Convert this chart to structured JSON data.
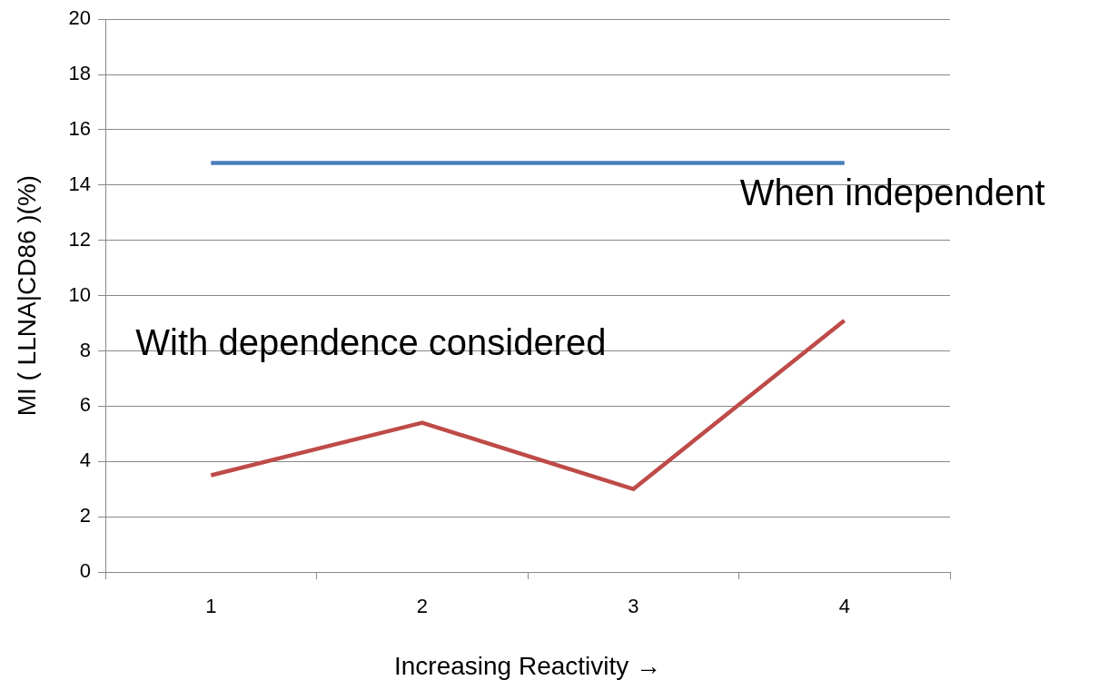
{
  "chart_data": {
    "type": "line",
    "xlabel": "Increasing Reactivity →",
    "ylabel": "MI ( LLNA|CD86 )(%)",
    "categories": [
      "1",
      "2",
      "3",
      "4"
    ],
    "ylim": [
      0,
      20
    ],
    "yticks": [
      0,
      2,
      4,
      6,
      8,
      10,
      12,
      14,
      16,
      18,
      20
    ],
    "grid": "y",
    "legend": false,
    "marker": "none",
    "line_style": "solid",
    "series": [
      {
        "name": "When independent",
        "color": "#4a7ebb",
        "values": [
          14.8,
          14.8,
          14.8,
          14.8
        ]
      },
      {
        "name": "With dependence considered",
        "color": "#be4b48",
        "values": [
          3.5,
          5.4,
          3.0,
          9.1
        ]
      }
    ]
  }
}
